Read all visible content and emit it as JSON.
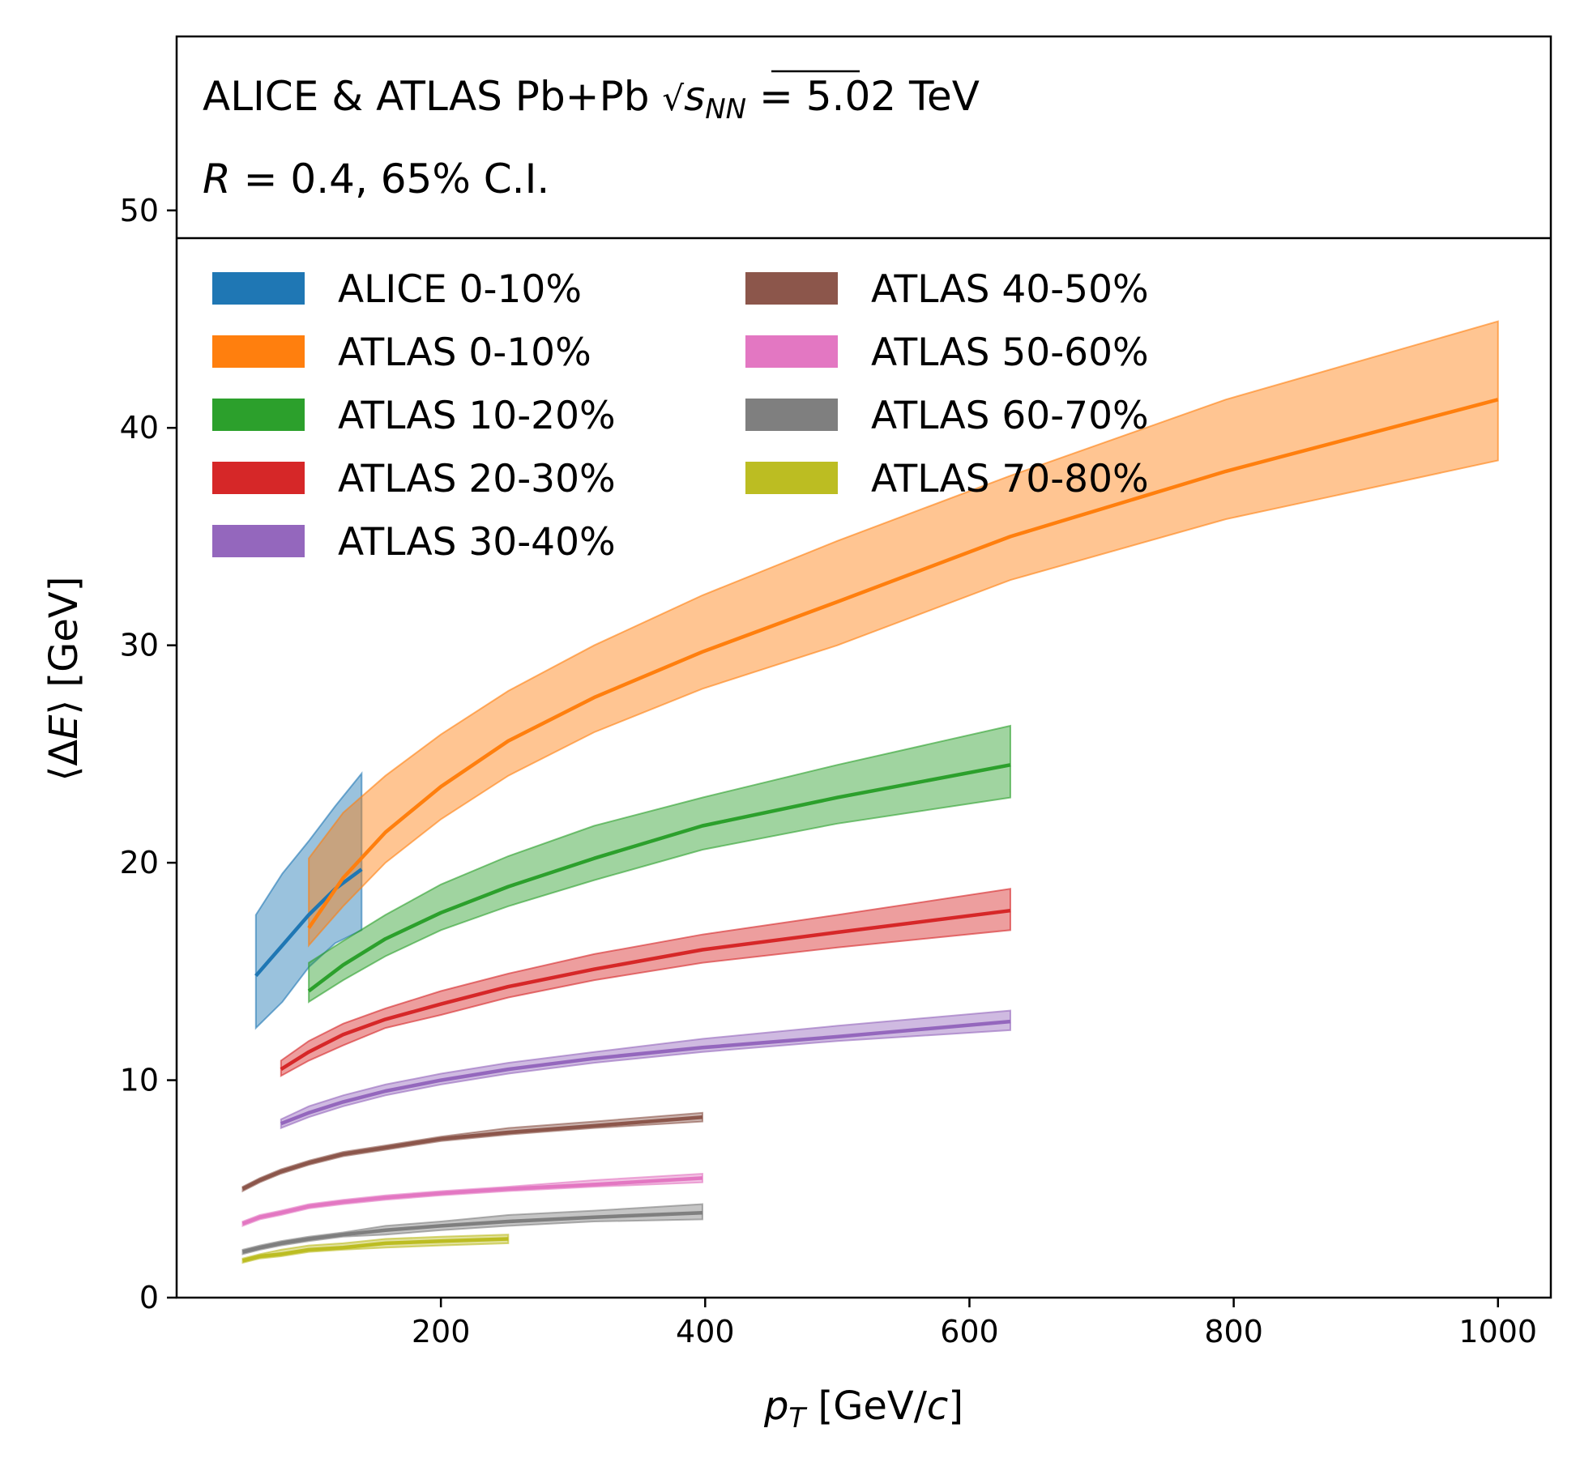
{
  "chart_data": {
    "type": "line",
    "header": {
      "line1_prefix": "ALICE & ATLAS Pb+Pb ",
      "line1_sqrt_s": "s",
      "line1_sqrt_sub": "NN",
      "line1_suffix": " = 5.02 TeV",
      "line2_r": "R",
      "line2_suffix": " = 0.4, 65% C.I."
    },
    "xlabel": {
      "p": "p",
      "sub": "T",
      "rest": " [GeV/",
      "c": "c",
      "close": "]"
    },
    "ylabel": {
      "open": "⟨Δ",
      "E": "E",
      "rest": "⟩ [GeV]"
    },
    "xlim": [
      0,
      1040
    ],
    "ylim": [
      0,
      58
    ],
    "xticks": [
      200,
      400,
      600,
      800,
      1000
    ],
    "yticks": [
      0,
      10,
      20,
      30,
      40,
      50
    ],
    "legend_position": "upper-left, two columns",
    "series": [
      {
        "name": "ALICE 0-10%",
        "color": "#1f77b4",
        "x": [
          60,
          80,
          100,
          120,
          140
        ],
        "y": [
          14.8,
          16.2,
          17.6,
          18.8,
          19.7
        ],
        "lower": [
          12.4,
          13.6,
          15.2,
          16.3,
          16.9
        ],
        "upper": [
          17.6,
          19.5,
          21.0,
          22.6,
          24.1
        ]
      },
      {
        "name": "ATLAS 0-10%",
        "color": "#ff7f0e",
        "x": [
          100,
          126,
          158,
          200,
          251,
          316,
          398,
          500,
          631,
          794,
          1000
        ],
        "y": [
          17.0,
          19.3,
          21.4,
          23.5,
          25.6,
          27.6,
          29.7,
          32.0,
          35.0,
          38.0,
          41.3
        ],
        "lower": [
          16.2,
          18.0,
          20.0,
          22.0,
          24.0,
          26.0,
          28.0,
          30.0,
          33.0,
          35.8,
          38.5
        ],
        "upper": [
          20.2,
          22.3,
          24.0,
          25.9,
          27.9,
          30.0,
          32.3,
          34.8,
          37.8,
          41.3,
          44.9
        ]
      },
      {
        "name": "ATLAS 10-20%",
        "color": "#2ca02c",
        "x": [
          100,
          126,
          158,
          200,
          251,
          316,
          398,
          500,
          631
        ],
        "y": [
          14.1,
          15.3,
          16.5,
          17.7,
          18.9,
          20.2,
          21.7,
          23.0,
          24.5
        ],
        "lower": [
          13.6,
          14.6,
          15.7,
          16.9,
          18.0,
          19.2,
          20.6,
          21.8,
          23.0
        ],
        "upper": [
          15.4,
          16.4,
          17.6,
          19.0,
          20.3,
          21.7,
          23.0,
          24.5,
          26.3
        ]
      },
      {
        "name": "ATLAS 20-30%",
        "color": "#d62728",
        "x": [
          79,
          100,
          126,
          158,
          200,
          251,
          316,
          398,
          500,
          631
        ],
        "y": [
          10.5,
          11.3,
          12.1,
          12.8,
          13.5,
          14.3,
          15.1,
          16.0,
          16.8,
          17.8
        ],
        "lower": [
          10.2,
          10.9,
          11.6,
          12.4,
          13.0,
          13.8,
          14.6,
          15.4,
          16.1,
          16.9
        ],
        "upper": [
          10.9,
          11.8,
          12.6,
          13.3,
          14.1,
          14.9,
          15.8,
          16.7,
          17.6,
          18.8
        ]
      },
      {
        "name": "ATLAS 30-40%",
        "color": "#9467bd",
        "x": [
          79,
          100,
          126,
          158,
          200,
          251,
          316,
          398,
          500,
          631
        ],
        "y": [
          8.0,
          8.5,
          9.0,
          9.5,
          10.0,
          10.5,
          11.0,
          11.5,
          12.0,
          12.7
        ],
        "lower": [
          7.8,
          8.3,
          8.8,
          9.3,
          9.8,
          10.3,
          10.8,
          11.3,
          11.8,
          12.3
        ],
        "upper": [
          8.2,
          8.8,
          9.3,
          9.8,
          10.3,
          10.8,
          11.3,
          11.9,
          12.5,
          13.2
        ]
      },
      {
        "name": "ATLAS 40-50%",
        "color": "#8c564b",
        "x": [
          50,
          63,
          79,
          100,
          126,
          158,
          200,
          251,
          316,
          398
        ],
        "y": [
          5.0,
          5.4,
          5.8,
          6.2,
          6.6,
          6.9,
          7.3,
          7.6,
          7.9,
          8.3
        ],
        "lower": [
          4.9,
          5.3,
          5.7,
          6.1,
          6.5,
          6.8,
          7.2,
          7.5,
          7.8,
          8.1
        ],
        "upper": [
          5.1,
          5.5,
          5.9,
          6.3,
          6.7,
          7.0,
          7.4,
          7.8,
          8.1,
          8.5
        ]
      },
      {
        "name": "ATLAS 50-60%",
        "color": "#e377c2",
        "x": [
          50,
          63,
          79,
          100,
          126,
          158,
          200,
          251,
          316,
          398
        ],
        "y": [
          3.4,
          3.7,
          3.9,
          4.2,
          4.4,
          4.6,
          4.8,
          5.0,
          5.2,
          5.5
        ],
        "lower": [
          3.3,
          3.6,
          3.8,
          4.1,
          4.3,
          4.5,
          4.7,
          4.9,
          5.1,
          5.3
        ],
        "upper": [
          3.5,
          3.8,
          4.0,
          4.3,
          4.5,
          4.7,
          4.9,
          5.1,
          5.4,
          5.7
        ]
      },
      {
        "name": "ATLAS 60-70%",
        "color": "#7f7f7f",
        "x": [
          50,
          63,
          79,
          100,
          126,
          158,
          200,
          251,
          316,
          398
        ],
        "y": [
          2.1,
          2.3,
          2.5,
          2.7,
          2.9,
          3.1,
          3.3,
          3.5,
          3.7,
          3.9
        ],
        "lower": [
          2.0,
          2.2,
          2.4,
          2.6,
          2.8,
          2.9,
          3.1,
          3.3,
          3.5,
          3.6
        ],
        "upper": [
          2.2,
          2.4,
          2.6,
          2.8,
          3.0,
          3.3,
          3.5,
          3.8,
          4.0,
          4.3
        ]
      },
      {
        "name": "ATLAS 70-80%",
        "color": "#bcbd22",
        "x": [
          50,
          63,
          79,
          100,
          126,
          158,
          200,
          251
        ],
        "y": [
          1.7,
          1.9,
          2.0,
          2.2,
          2.3,
          2.5,
          2.6,
          2.7
        ],
        "lower": [
          1.6,
          1.8,
          1.9,
          2.1,
          2.2,
          2.3,
          2.4,
          2.5
        ],
        "upper": [
          1.8,
          2.0,
          2.2,
          2.4,
          2.5,
          2.7,
          2.8,
          2.9
        ]
      }
    ]
  }
}
